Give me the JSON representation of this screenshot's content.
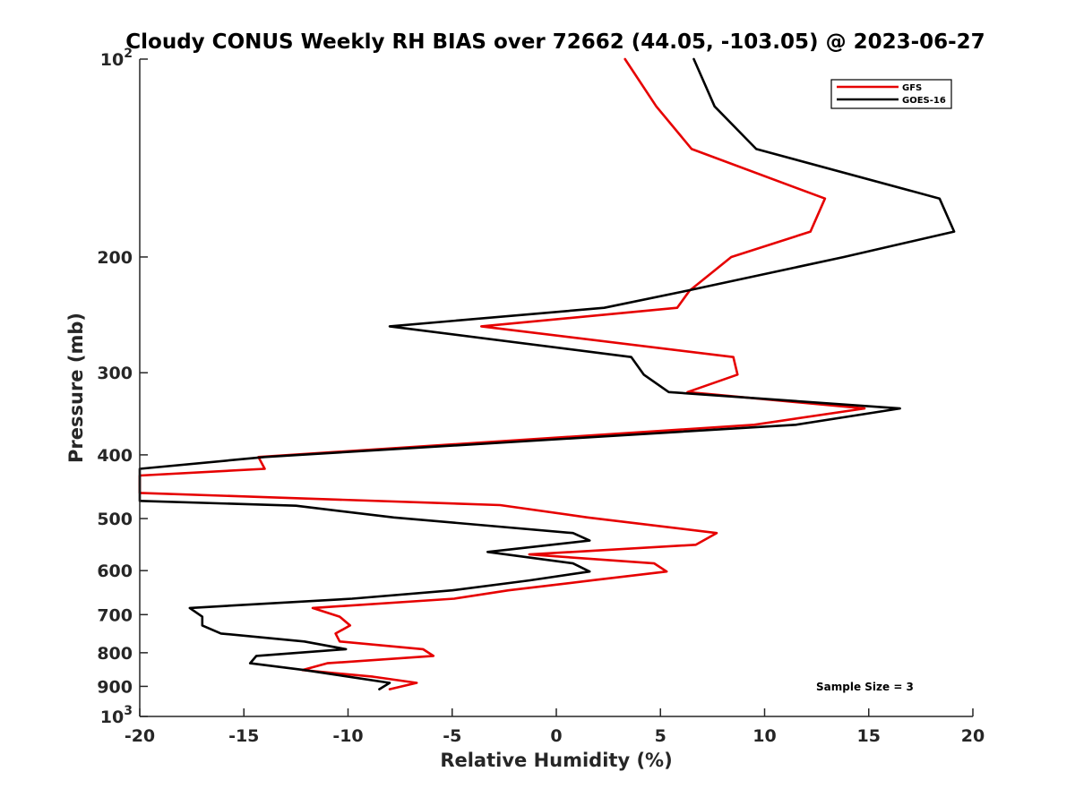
{
  "chart_data": {
    "type": "line",
    "title": "Cloudy CONUS Weekly RH BIAS over 72662 (44.05, -103.05) @ 2023-06-27",
    "xlabel": "Relative Humidity (%)",
    "ylabel": "Pressure (mb)",
    "xlim": [
      -20,
      20
    ],
    "ylim": [
      100,
      1000
    ],
    "y_scale": "log",
    "y_reversed": true,
    "grid": false,
    "legend_position": "top-right",
    "x_ticks": [
      -20,
      -15,
      -10,
      -5,
      0,
      5,
      10,
      15,
      20
    ],
    "x_tick_labels": [
      "-20",
      "-15",
      "-10",
      "-5",
      "0",
      "5",
      "10",
      "15",
      "20"
    ],
    "y_ticks": [
      100,
      200,
      300,
      400,
      500,
      600,
      700,
      800,
      900,
      1000
    ],
    "y_tick_labels": [
      {
        "base": "10",
        "exp": "2"
      },
      {
        "base": "200",
        "exp": ""
      },
      {
        "base": "300",
        "exp": ""
      },
      {
        "base": "400",
        "exp": ""
      },
      {
        "base": "500",
        "exp": ""
      },
      {
        "base": "600",
        "exp": ""
      },
      {
        "base": "700",
        "exp": ""
      },
      {
        "base": "800",
        "exp": ""
      },
      {
        "base": "900",
        "exp": ""
      },
      {
        "base": "10",
        "exp": "3"
      }
    ],
    "annotation": "Sample Size = 3",
    "series": [
      {
        "name": "GFS",
        "color": "#e60000",
        "x": [
          3.3,
          4.8,
          6.5,
          12.9,
          12.2,
          8.4,
          6.4,
          5.8,
          -3.6,
          8.5,
          8.7,
          6.3,
          14.8,
          9.5,
          -14.3,
          -14.0,
          -20.0,
          -20.0,
          -2.7,
          1.5,
          7.7,
          6.7,
          -1.3,
          4.7,
          5.3,
          1.7,
          -2.3,
          -4.9,
          -11.7,
          -10.4,
          -9.9,
          -10.6,
          -10.4,
          -6.4,
          -5.9,
          -11.0,
          -12.2,
          -8.8,
          -6.7,
          -8.0
        ],
        "y": [
          100,
          118,
          137,
          163,
          183,
          200,
          225,
          239,
          255,
          284,
          302,
          321,
          340,
          360,
          403,
          420,
          430,
          457,
          477,
          498,
          526,
          548,
          567,
          585,
          602,
          621,
          643,
          662,
          684,
          705,
          727,
          748,
          769,
          790,
          809,
          830,
          850,
          870,
          889,
          909
        ]
      },
      {
        "name": "GOES-16",
        "color": "#000000",
        "x": [
          6.6,
          7.6,
          9.6,
          18.4,
          19.1,
          13.8,
          6.3,
          2.3,
          -8.0,
          3.6,
          4.2,
          5.4,
          16.5,
          11.5,
          -14.0,
          -20.0,
          -20.0,
          -12.5,
          -7.8,
          0.8,
          1.6,
          -3.3,
          0.8,
          1.6,
          -1.3,
          -5.0,
          -9.8,
          -17.6,
          -17.0,
          -17.0,
          -16.1,
          -12.1,
          -10.1,
          -14.4,
          -14.7,
          -12.1,
          -8.0,
          -8.5
        ],
        "y": [
          100,
          118,
          137,
          163,
          183,
          200,
          225,
          239,
          255,
          284,
          302,
          321,
          340,
          360,
          403,
          420,
          470,
          478,
          498,
          526,
          540,
          562,
          585,
          602,
          621,
          643,
          662,
          684,
          705,
          727,
          748,
          769,
          790,
          809,
          830,
          850,
          889,
          909
        ]
      }
    ]
  }
}
